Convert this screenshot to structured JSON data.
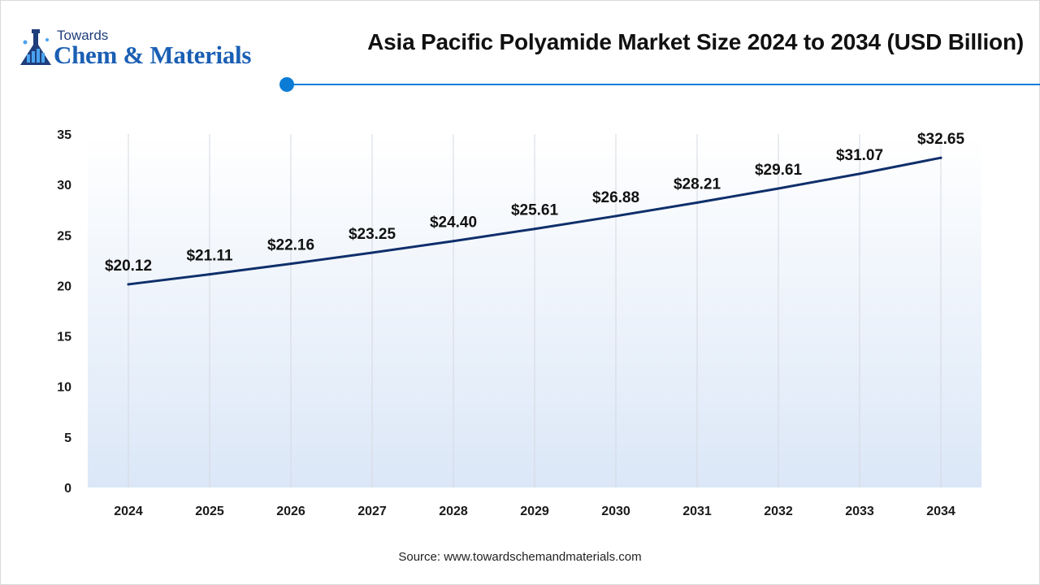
{
  "brand": {
    "top": "Towards",
    "main": "Chem & Materials"
  },
  "colors": {
    "line": "#0f2f6b",
    "accent": "#0a7cd6",
    "plot_fill_top": "#ffffff",
    "plot_fill_bottom": "#dbe7f7",
    "grid": "#d5d9e0"
  },
  "source_text": "Source: www.towardschemandmaterials.com",
  "chart_data": {
    "type": "area",
    "title": "Asia Pacific Polyamide Market Size 2024 to 2034 (USD Billion)",
    "xlabel": "",
    "ylabel": "",
    "categories": [
      "2024",
      "2025",
      "2026",
      "2027",
      "2028",
      "2029",
      "2030",
      "2031",
      "2032",
      "2033",
      "2034"
    ],
    "values": [
      20.12,
      21.11,
      22.16,
      23.25,
      24.4,
      25.61,
      26.88,
      28.21,
      29.61,
      31.07,
      32.65
    ],
    "data_labels": [
      "$20.12",
      "$21.11",
      "$22.16",
      "$23.25",
      "$24.40",
      "$25.61",
      "$26.88",
      "$28.21",
      "$29.61",
      "$31.07",
      "$32.65"
    ],
    "yticks": [
      0,
      5,
      10,
      15,
      20,
      25,
      30,
      35
    ],
    "ylim": [
      0,
      35
    ],
    "grid": "vertical",
    "legend": "none"
  }
}
